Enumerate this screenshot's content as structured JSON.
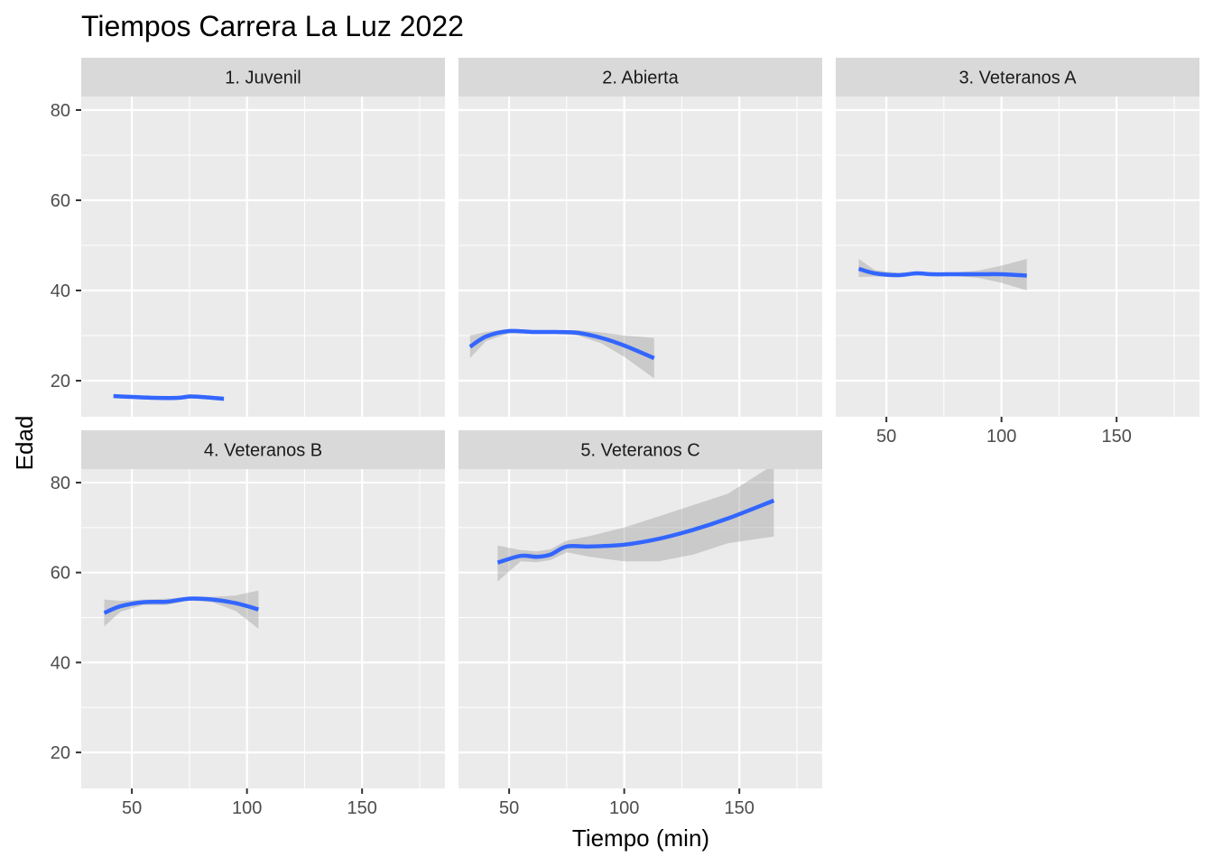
{
  "chart_data": {
    "type": "line",
    "title": "Tiempos Carrera La Luz  2022",
    "xlabel": "Tiempo (min)",
    "ylabel": "Edad",
    "xlim": [
      28,
      186
    ],
    "ylim": [
      12,
      83
    ],
    "x_ticks": [
      50,
      100,
      150
    ],
    "x_tick_labels": [
      "50",
      "100",
      "150"
    ],
    "y_ticks": [
      20,
      40,
      60,
      80
    ],
    "y_tick_labels": [
      "20",
      "40",
      "60",
      "80"
    ],
    "grid": true,
    "line_color": "#3366ff",
    "band_color": "#999999",
    "panel_bg": "#ebebeb",
    "strip_bg": "#d9d9d9",
    "panels": [
      {
        "name": "1. Juvenil",
        "x": [
          42,
          50,
          60,
          70,
          75,
          80,
          90
        ],
        "y": [
          16.6,
          16.4,
          16.2,
          16.2,
          16.5,
          16.4,
          16.0
        ],
        "lower": [
          16.5,
          16.3,
          16.1,
          16.1,
          16.4,
          16.3,
          15.9
        ],
        "upper": [
          16.7,
          16.5,
          16.3,
          16.3,
          16.6,
          16.5,
          16.1
        ]
      },
      {
        "name": "2. Abierta",
        "x": [
          33,
          40,
          50,
          60,
          70,
          80,
          90,
          100,
          113
        ],
        "y": [
          27.5,
          29.8,
          31.0,
          30.8,
          30.8,
          30.6,
          29.5,
          27.8,
          25.0
        ],
        "lower": [
          25.0,
          28.8,
          30.5,
          30.4,
          30.4,
          30.0,
          28.3,
          25.3,
          20.5
        ],
        "upper": [
          30.0,
          30.8,
          31.5,
          31.2,
          31.2,
          31.2,
          30.7,
          30.0,
          29.5
        ]
      },
      {
        "name": "3. Veteranos A",
        "x": [
          38,
          45,
          55,
          63,
          70,
          80,
          90,
          100,
          111
        ],
        "y": [
          44.8,
          43.8,
          43.4,
          43.8,
          43.6,
          43.6,
          43.6,
          43.6,
          43.3
        ],
        "lower": [
          43.0,
          43.1,
          42.9,
          43.4,
          43.3,
          43.2,
          42.8,
          41.7,
          40.0
        ],
        "upper": [
          47.0,
          44.5,
          43.9,
          44.2,
          43.9,
          44.0,
          44.4,
          45.5,
          47.0
        ]
      },
      {
        "name": "4. Veteranos B",
        "x": [
          38,
          45,
          55,
          65,
          75,
          85,
          95,
          105
        ],
        "y": [
          51.0,
          52.5,
          53.4,
          53.5,
          54.2,
          54.0,
          53.2,
          51.8
        ],
        "lower": [
          48.0,
          51.3,
          52.8,
          52.8,
          53.8,
          53.4,
          51.5,
          47.5
        ],
        "upper": [
          54.0,
          53.7,
          54.0,
          54.2,
          54.6,
          54.6,
          54.9,
          56.0
        ]
      },
      {
        "name": "5. Veteranos C",
        "x": [
          45,
          55,
          62,
          68,
          75,
          85,
          100,
          115,
          130,
          145,
          165
        ],
        "y": [
          62.2,
          63.7,
          63.5,
          64.0,
          65.8,
          65.8,
          66.2,
          67.5,
          69.5,
          72.0,
          76.0
        ],
        "lower": [
          58.0,
          62.5,
          62.3,
          62.8,
          64.5,
          63.5,
          62.5,
          62.5,
          64.0,
          66.5,
          68.0
        ],
        "upper": [
          66.0,
          65.0,
          64.7,
          65.2,
          67.1,
          68.1,
          70.0,
          72.5,
          75.0,
          77.5,
          84.0
        ]
      }
    ]
  }
}
